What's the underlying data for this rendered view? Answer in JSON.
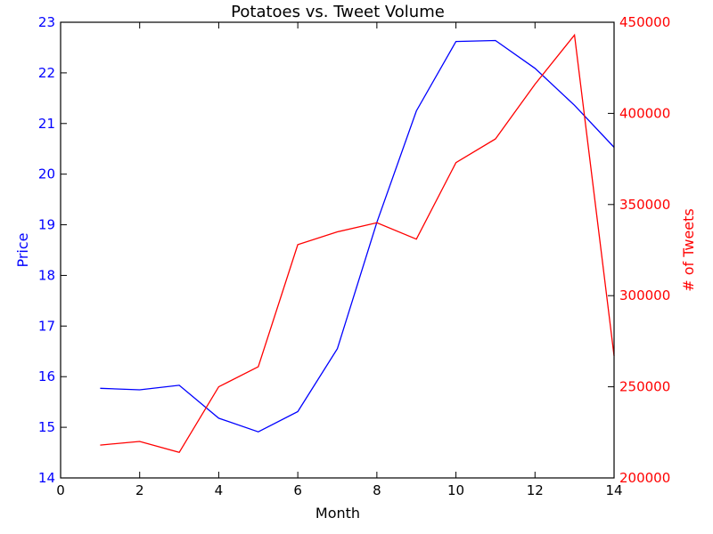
{
  "chart_data": {
    "type": "line",
    "title": "Potatoes vs. Tweet Volume",
    "xlabel": "Month",
    "xlim": [
      0,
      14
    ],
    "xticks": [
      "0",
      "2",
      "4",
      "6",
      "8",
      "10",
      "12",
      "14"
    ],
    "grid": false,
    "legend": "none",
    "left_axis": {
      "label": "Price",
      "color": "#0000ff",
      "ylim": [
        14,
        23
      ],
      "ticks": [
        "14",
        "15",
        "16",
        "17",
        "18",
        "19",
        "20",
        "21",
        "22",
        "23"
      ]
    },
    "right_axis": {
      "label": "# of Tweets",
      "color": "#ff0000",
      "ylim": [
        200000,
        450000
      ],
      "ticks": [
        "200000",
        "250000",
        "300000",
        "350000",
        "400000",
        "450000"
      ]
    },
    "series": [
      {
        "axis": "left",
        "color": "#0000ff",
        "x": [
          1,
          2,
          3,
          4,
          5,
          6,
          7,
          8,
          9,
          10,
          11,
          12,
          13,
          14
        ],
        "values": [
          15.77,
          15.74,
          15.83,
          15.18,
          14.91,
          15.31,
          16.55,
          19.05,
          21.25,
          22.62,
          22.64,
          22.09,
          21.36,
          20.53
        ]
      },
      {
        "axis": "right",
        "color": "#ff0000",
        "x": [
          1,
          2,
          3,
          4,
          5,
          6,
          7,
          8,
          9,
          10,
          11,
          12,
          13,
          14
        ],
        "values": [
          218000,
          220000,
          214000,
          250000,
          261000,
          328000,
          335000,
          340000,
          331000,
          373000,
          386000,
          416000,
          443000,
          267000
        ]
      }
    ]
  }
}
